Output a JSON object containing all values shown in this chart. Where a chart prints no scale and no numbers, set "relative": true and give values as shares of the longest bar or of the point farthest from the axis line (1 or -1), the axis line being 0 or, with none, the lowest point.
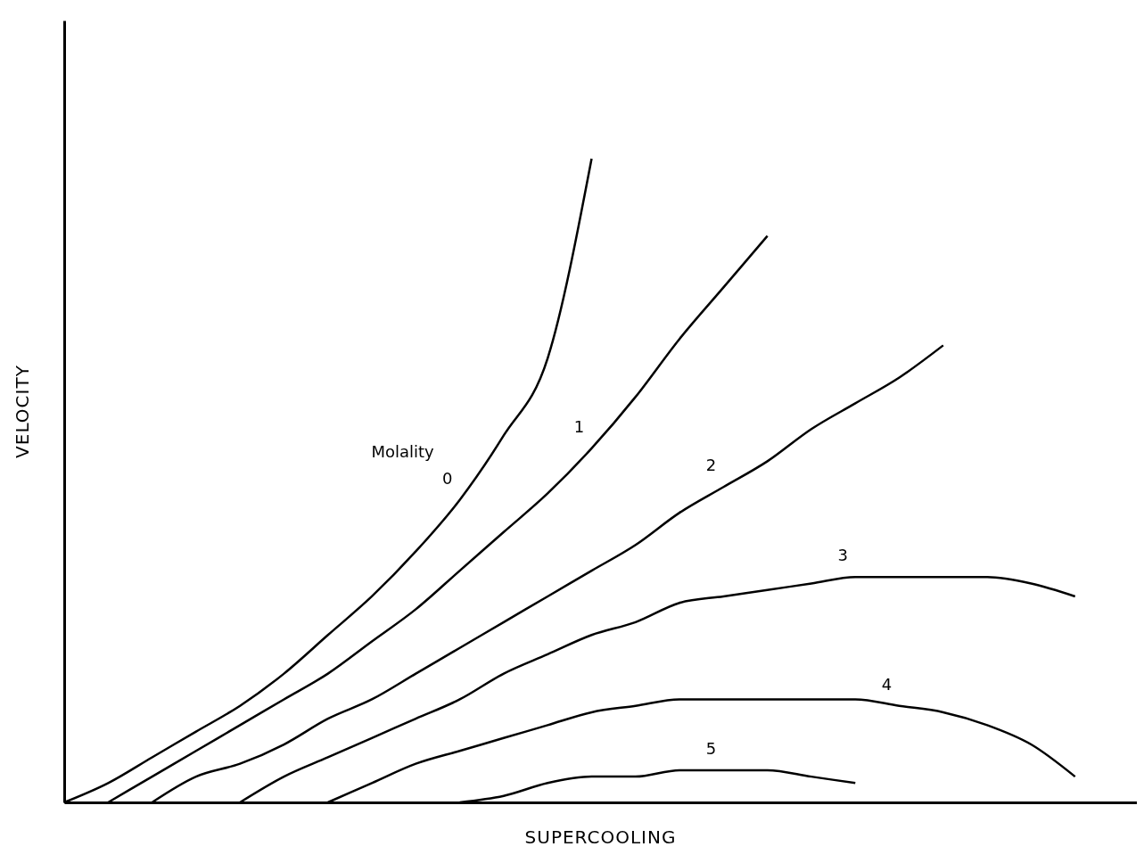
{
  "chart_data": {
    "type": "line",
    "relative": true,
    "xlabel": "SUPERCOOLING",
    "ylabel": "VELOCITY",
    "legend_title": "Molality",
    "line_style": "solid",
    "marker": "none",
    "categories": [
      null,
      null,
      null,
      null,
      null,
      null,
      null,
      null,
      null,
      null,
      null,
      null,
      null,
      null,
      null,
      null,
      null,
      null,
      null,
      null,
      null,
      null,
      null,
      null,
      null
    ],
    "series": [
      {
        "name": "0",
        "color": "#000000",
        "values": [
          0,
          0.03,
          0.07,
          0.11,
          0.15,
          0.2,
          0.26,
          0.32,
          0.39,
          0.47,
          0.57,
          0.69,
          1,
          null,
          null,
          null,
          null,
          null,
          null,
          null,
          null,
          null,
          null,
          null,
          null
        ]
      },
      {
        "name": "1",
        "color": "#000000",
        "values": [
          null,
          0,
          0.04,
          0.08,
          0.12,
          0.16,
          0.2,
          0.25,
          0.3,
          0.36,
          0.42,
          0.48,
          0.55,
          0.63,
          0.72,
          0.8,
          0.88,
          null,
          null,
          null,
          null,
          null,
          null,
          null,
          null
        ]
      },
      {
        "name": "2",
        "color": "#000000",
        "values": [
          null,
          null,
          0,
          0.04,
          0.06,
          0.09,
          0.13,
          0.16,
          0.2,
          0.24,
          0.28,
          0.32,
          0.36,
          0.4,
          0.45,
          0.49,
          0.53,
          0.58,
          0.62,
          0.66,
          0.71,
          null,
          null,
          null,
          null
        ]
      },
      {
        "name": "3",
        "color": "#000000",
        "values": [
          null,
          null,
          null,
          null,
          0,
          0.04,
          0.07,
          0.1,
          0.13,
          0.16,
          0.2,
          0.23,
          0.26,
          0.28,
          0.31,
          0.32,
          0.33,
          0.34,
          0.35,
          0.35,
          0.35,
          0.35,
          0.34,
          0.32,
          null
        ]
      },
      {
        "name": "4",
        "color": "#000000",
        "values": [
          null,
          null,
          null,
          null,
          null,
          null,
          0,
          0.03,
          0.06,
          0.08,
          0.1,
          0.12,
          0.14,
          0.15,
          0.16,
          0.16,
          0.16,
          0.16,
          0.16,
          0.15,
          0.14,
          0.12,
          0.09,
          0.04,
          null
        ]
      },
      {
        "name": "5",
        "color": "#000000",
        "values": [
          null,
          null,
          null,
          null,
          null,
          null,
          null,
          null,
          null,
          0,
          0.01,
          0.03,
          0.04,
          0.04,
          0.05,
          0.05,
          0.05,
          0.04,
          0.03,
          null,
          null,
          null,
          null,
          null,
          null
        ]
      }
    ]
  }
}
